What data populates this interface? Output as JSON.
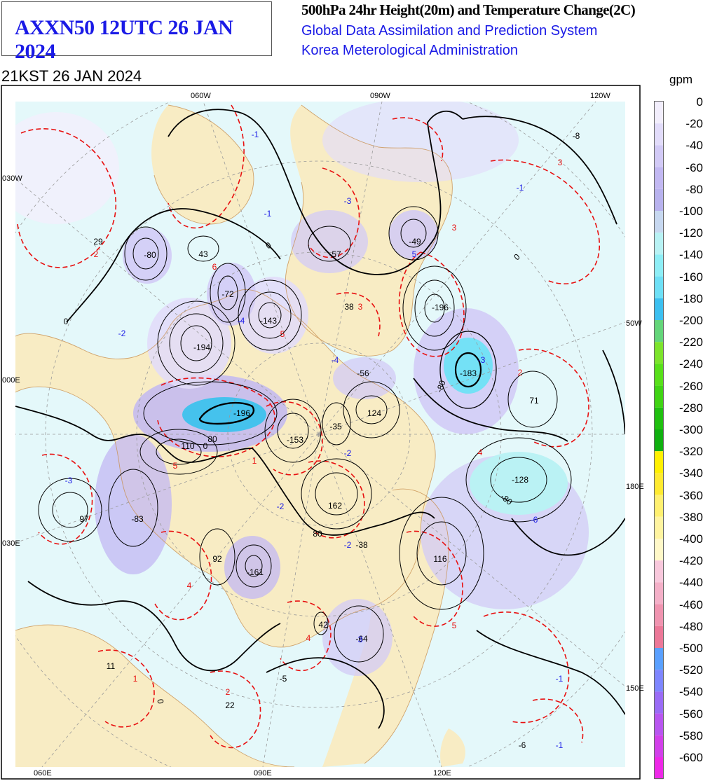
{
  "header": {
    "product_code": "AXXN50 12UTC 26 JAN 2024",
    "title": "500hPa 24hr Height(20m) and Temperature Change(2C)",
    "system": "Global Data Assimilation and Prediction System",
    "agency": "Korea Meterological Administration",
    "valid_time": "21KST 26 JAN 2024"
  },
  "colorbar": {
    "unit": "gpm",
    "labels": [
      "0",
      "-20",
      "-40",
      "-60",
      "-80",
      "-100",
      "-120",
      "-140",
      "-160",
      "-180",
      "-200",
      "-220",
      "-240",
      "-260",
      "-280",
      "-300",
      "-320",
      "-340",
      "-360",
      "-380",
      "-400",
      "-420",
      "-440",
      "-460",
      "-480",
      "-500",
      "-520",
      "-540",
      "-560",
      "-580",
      "-600"
    ],
    "colors": [
      "#f2eefc",
      "#e2dcfa",
      "#d2caf6",
      "#c2b8f2",
      "#b8b2ee",
      "#c7d8f0",
      "#b8f2f4",
      "#8eeef6",
      "#6ee0f6",
      "#3cc0f0",
      "#64d67a",
      "#7ce42c",
      "#58e01a",
      "#40d414",
      "#20c010",
      "#10b010",
      "#fff000",
      "#ffea30",
      "#fff070",
      "#fff4a0",
      "#fff8c8",
      "#f8c8dc",
      "#f4b0c8",
      "#f094b0",
      "#ec7898",
      "#5aa0ff",
      "#7e86ff",
      "#9a6cf6",
      "#b856f0",
      "#d240ea",
      "#ee28e8"
    ]
  },
  "map": {
    "land_color": "#f8ecc4",
    "ocean_color": "#e4f8fa",
    "height_contour_color": "#000000",
    "temp_contour_color": "#e81010",
    "lon_labels_top": [
      "060W",
      "090W",
      "120W"
    ],
    "lon_labels_bottom": [
      "060E",
      "090E",
      "120E"
    ],
    "lon_labels_left": [
      "030W",
      "000E",
      "030E"
    ],
    "lon_labels_right": [
      "50W",
      "180E",
      "150E"
    ],
    "height_values": [
      {
        "text": "29"
      },
      {
        "text": "-80"
      },
      {
        "text": "43"
      },
      {
        "text": "-72"
      },
      {
        "text": "-143"
      },
      {
        "text": "-57"
      },
      {
        "text": "-49"
      },
      {
        "text": "38"
      },
      {
        "text": "-196"
      },
      {
        "text": "-194"
      },
      {
        "text": "-56"
      },
      {
        "text": "-183"
      },
      {
        "text": "71"
      },
      {
        "text": "-196"
      },
      {
        "text": "124"
      },
      {
        "text": "-35"
      },
      {
        "text": "-153"
      },
      {
        "text": "110"
      },
      {
        "text": "-128"
      },
      {
        "text": "97"
      },
      {
        "text": "-83"
      },
      {
        "text": "162"
      },
      {
        "text": "-38"
      },
      {
        "text": "116"
      },
      {
        "text": "92"
      },
      {
        "text": "-161"
      },
      {
        "text": "42"
      },
      {
        "text": "-64"
      },
      {
        "text": "11"
      },
      {
        "text": "-5"
      },
      {
        "text": "22"
      },
      {
        "text": "-6"
      },
      {
        "text": "-8"
      },
      {
        "text": "80"
      },
      {
        "text": "-80"
      },
      {
        "text": "0"
      },
      {
        "text": "80"
      },
      {
        "text": "-80"
      },
      {
        "text": "0"
      },
      {
        "text": "0"
      },
      {
        "text": "0"
      },
      {
        "text": "0"
      }
    ],
    "temp_values": [
      {
        "text": "-1",
        "color": "#1a1ae6"
      },
      {
        "text": "-3",
        "color": "#1a1ae6"
      },
      {
        "text": "-1",
        "color": "#1a1ae6"
      },
      {
        "text": "3",
        "color": "#e81010"
      },
      {
        "text": "-1",
        "color": "#1a1ae6"
      },
      {
        "text": "2",
        "color": "#e81010"
      },
      {
        "text": "6",
        "color": "#e81010"
      },
      {
        "text": "5",
        "color": "#1a1ae6"
      },
      {
        "text": "3",
        "color": "#e81010"
      },
      {
        "text": "3",
        "color": "#e81010"
      },
      {
        "text": "-2",
        "color": "#1a1ae6"
      },
      {
        "text": "-4",
        "color": "#1a1ae6"
      },
      {
        "text": "5",
        "color": "#e81010"
      },
      {
        "text": "-4",
        "color": "#1a1ae6"
      },
      {
        "text": "2",
        "color": "#e81010"
      },
      {
        "text": "-3",
        "color": "#1a1ae6"
      },
      {
        "text": "5",
        "color": "#e81010"
      },
      {
        "text": "-3",
        "color": "#1a1ae6"
      },
      {
        "text": "-2",
        "color": "#1a1ae6"
      },
      {
        "text": "-6",
        "color": "#1a1ae6"
      },
      {
        "text": "-2",
        "color": "#1a1ae6"
      },
      {
        "text": "4",
        "color": "#e81010"
      },
      {
        "text": "4",
        "color": "#e81010"
      },
      {
        "text": "5",
        "color": "#e81010"
      },
      {
        "text": "1",
        "color": "#e81010"
      },
      {
        "text": "2",
        "color": "#e81010"
      },
      {
        "text": "-1",
        "color": "#1a1ae6"
      },
      {
        "text": "-1",
        "color": "#1a1ae6"
      },
      {
        "text": "3",
        "color": "#1a1ae6"
      },
      {
        "text": "-2",
        "color": "#1a1ae6"
      },
      {
        "text": "4",
        "color": "#e81010"
      },
      {
        "text": "1",
        "color": "#e81010"
      }
    ]
  }
}
